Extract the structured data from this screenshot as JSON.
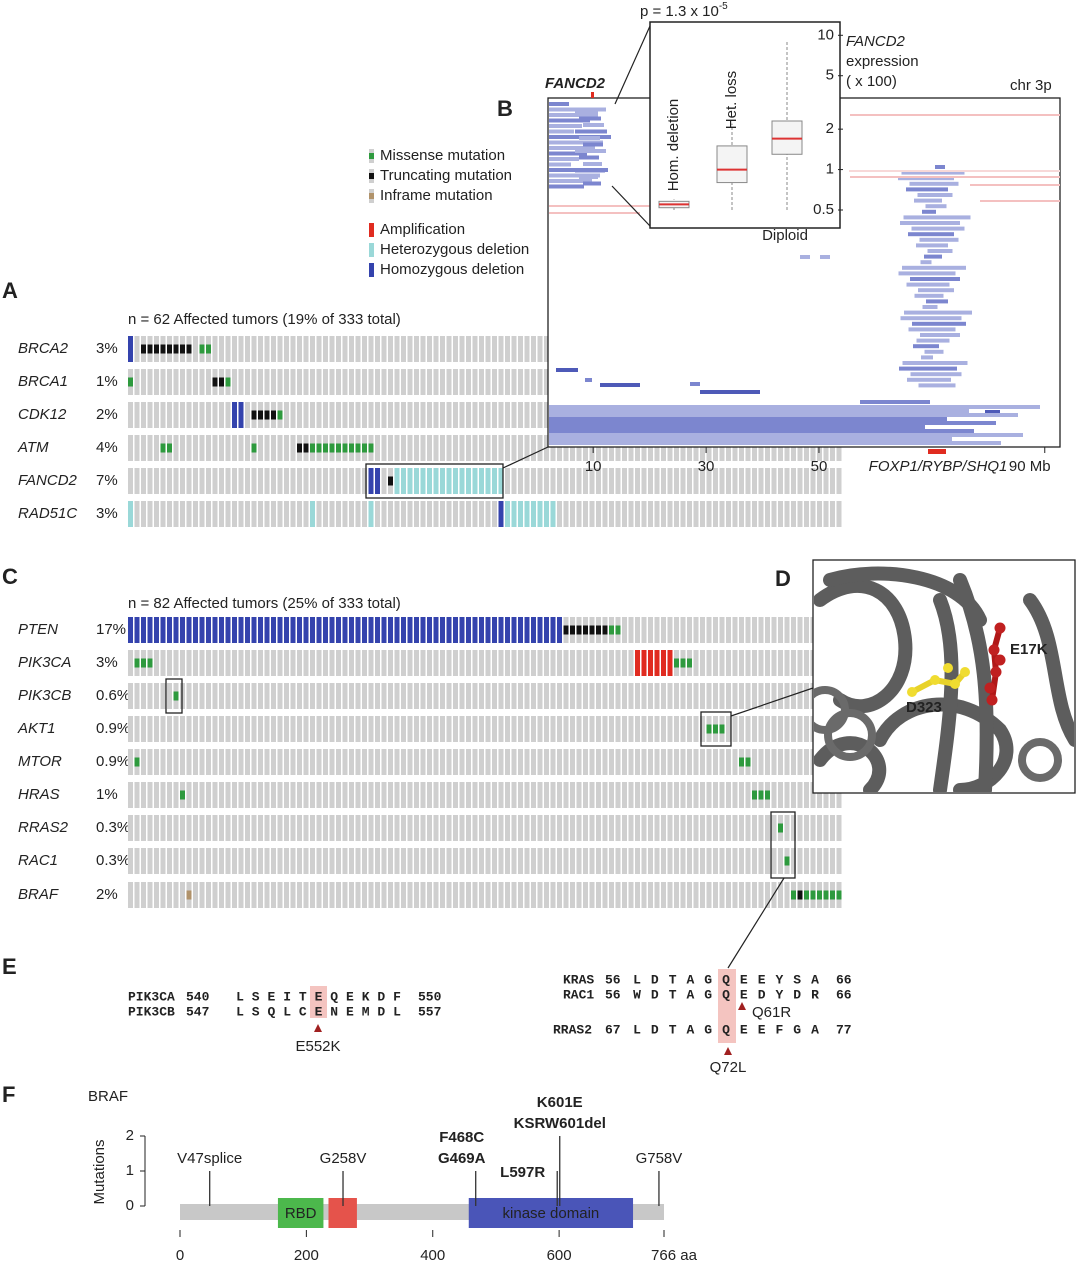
{
  "figure": {
    "panel_labels": {
      "a": "A",
      "b": "B",
      "c": "C",
      "d": "D",
      "e": "E",
      "f": "F"
    },
    "legend": {
      "mutations": [
        {
          "label": "Missense mutation",
          "color": "#2e9a3e"
        },
        {
          "label": "Truncating mutation",
          "color": "#111111"
        },
        {
          "label": "Inframe mutation",
          "color": "#b0926a"
        }
      ],
      "cna": [
        {
          "label": "Amplification",
          "color": "#e02b20"
        },
        {
          "label": "Heterozygous deletion",
          "color": "#9ad8d8"
        },
        {
          "label": "Homozygous deletion",
          "color": "#3443ad"
        }
      ]
    },
    "panel_a": {
      "summary": "n = 62 Affected tumors (19% of 333 total)",
      "genes": [
        {
          "name": "BRCA2",
          "percent": "3%"
        },
        {
          "name": "BRCA1",
          "percent": "1%"
        },
        {
          "name": "CDK12",
          "percent": "2%"
        },
        {
          "name": "ATM",
          "percent": "4%"
        },
        {
          "name": "FANCD2",
          "percent": "7%"
        },
        {
          "name": "RAD51C",
          "percent": "3%"
        }
      ]
    },
    "panel_b": {
      "gene_label": "FANCD2",
      "chromosome": "chr 3p",
      "expression_gene": "FANCD2",
      "expression_label": "expression",
      "expression_unit": "( x 100)",
      "p_value": "p = 1.3 x 10",
      "p_exponent": "-5",
      "inset": {
        "log": true,
        "ylim": [
          0.4,
          13
        ],
        "yticks": [
          0.5,
          1,
          2,
          5,
          10
        ],
        "groups": [
          {
            "label": "Hom. deletion",
            "min": 0.5,
            "q1": 0.52,
            "median": 0.55,
            "q3": 0.58,
            "max": 0.6
          },
          {
            "label": "Het. loss",
            "min": 0.5,
            "q1": 0.8,
            "median": 1.0,
            "q3": 1.5,
            "max": 2.2
          },
          {
            "label": "Diploid",
            "min": 0.5,
            "q1": 1.3,
            "median": 1.7,
            "q3": 2.3,
            "max": 9
          }
        ]
      },
      "xlim": [
        2,
        92.7
      ],
      "xticks": [
        10,
        30,
        50,
        {
          "value": 90,
          "label": "90 Mb"
        }
      ],
      "region_label": "FOXP1/RYBP/SHQ1"
    },
    "panel_c": {
      "summary": "n = 82 Affected tumors (25% of 333 total)",
      "genes": [
        {
          "name": "PTEN",
          "percent": "17%"
        },
        {
          "name": "PIK3CA",
          "percent": "3%"
        },
        {
          "name": "PIK3CB",
          "percent": "0.6%"
        },
        {
          "name": "AKT1",
          "percent": "0.9%"
        },
        {
          "name": "MTOR",
          "percent": "0.9%"
        },
        {
          "name": "HRAS",
          "percent": "1%"
        },
        {
          "name": "RRAS2",
          "percent": "0.3%"
        },
        {
          "name": "RAC1",
          "percent": "0.3%"
        },
        {
          "name": "BRAF",
          "percent": "2%"
        }
      ]
    },
    "panel_d": {
      "mutant_residue": "E17K",
      "partner_residue": "D323"
    },
    "panel_e": {
      "left": {
        "rows": [
          {
            "name": "PIK3CA",
            "start": 540,
            "sequence": "LSEITEQEKDF",
            "end": 550
          },
          {
            "name": "PIK3CB",
            "start": 547,
            "sequence": "LSQLCENEMDL",
            "end": 557
          }
        ],
        "mutation": "E552K"
      },
      "right": {
        "rows": [
          {
            "name": "KRAS",
            "start": 56,
            "sequence": "LDTAGQEEYSA",
            "end": 66
          },
          {
            "name": "RAC1",
            "start": 56,
            "sequence": "WDTAGQEDYDR",
            "end": 66
          },
          {
            "name": "RRAS2",
            "start": 67,
            "sequence": "LDTAGQEEFGA",
            "end": 77
          }
        ],
        "mutation_rac1": "Q61R",
        "mutation_rras2": "Q72L"
      }
    },
    "panel_f": {
      "protein": "BRAF",
      "y_axis_label": "Mutations",
      "ylim": [
        0,
        2
      ],
      "yticks": [
        0,
        1,
        2
      ],
      "xlim": [
        0,
        766
      ],
      "xticks": [
        0,
        200,
        400,
        600,
        {
          "value": 766,
          "label": "766 aa"
        }
      ],
      "domains": [
        {
          "label": "RBD",
          "start": 155,
          "end": 227,
          "color": "#4cb84c"
        },
        {
          "start": 235,
          "end": 280,
          "color": "#e5534b"
        },
        {
          "label": "kinase domain",
          "start": 457,
          "end": 717,
          "color": "#4a55b8"
        }
      ],
      "lollipops": [
        {
          "labels": [
            "V47splice"
          ],
          "position": 47,
          "count": 1
        },
        {
          "labels": [
            "G258V"
          ],
          "position": 258,
          "count": 1
        },
        {
          "labels": [
            "F468C",
            "G469A"
          ],
          "position": 468,
          "count": 1
        },
        {
          "labels": [
            "L597R"
          ],
          "position": 597,
          "count": 1
        },
        {
          "labels": [
            "K601E",
            "KSRW601del"
          ],
          "position": 601,
          "count": 2
        },
        {
          "labels": [
            "G758V"
          ],
          "position": 758,
          "count": 1
        }
      ]
    }
  }
}
